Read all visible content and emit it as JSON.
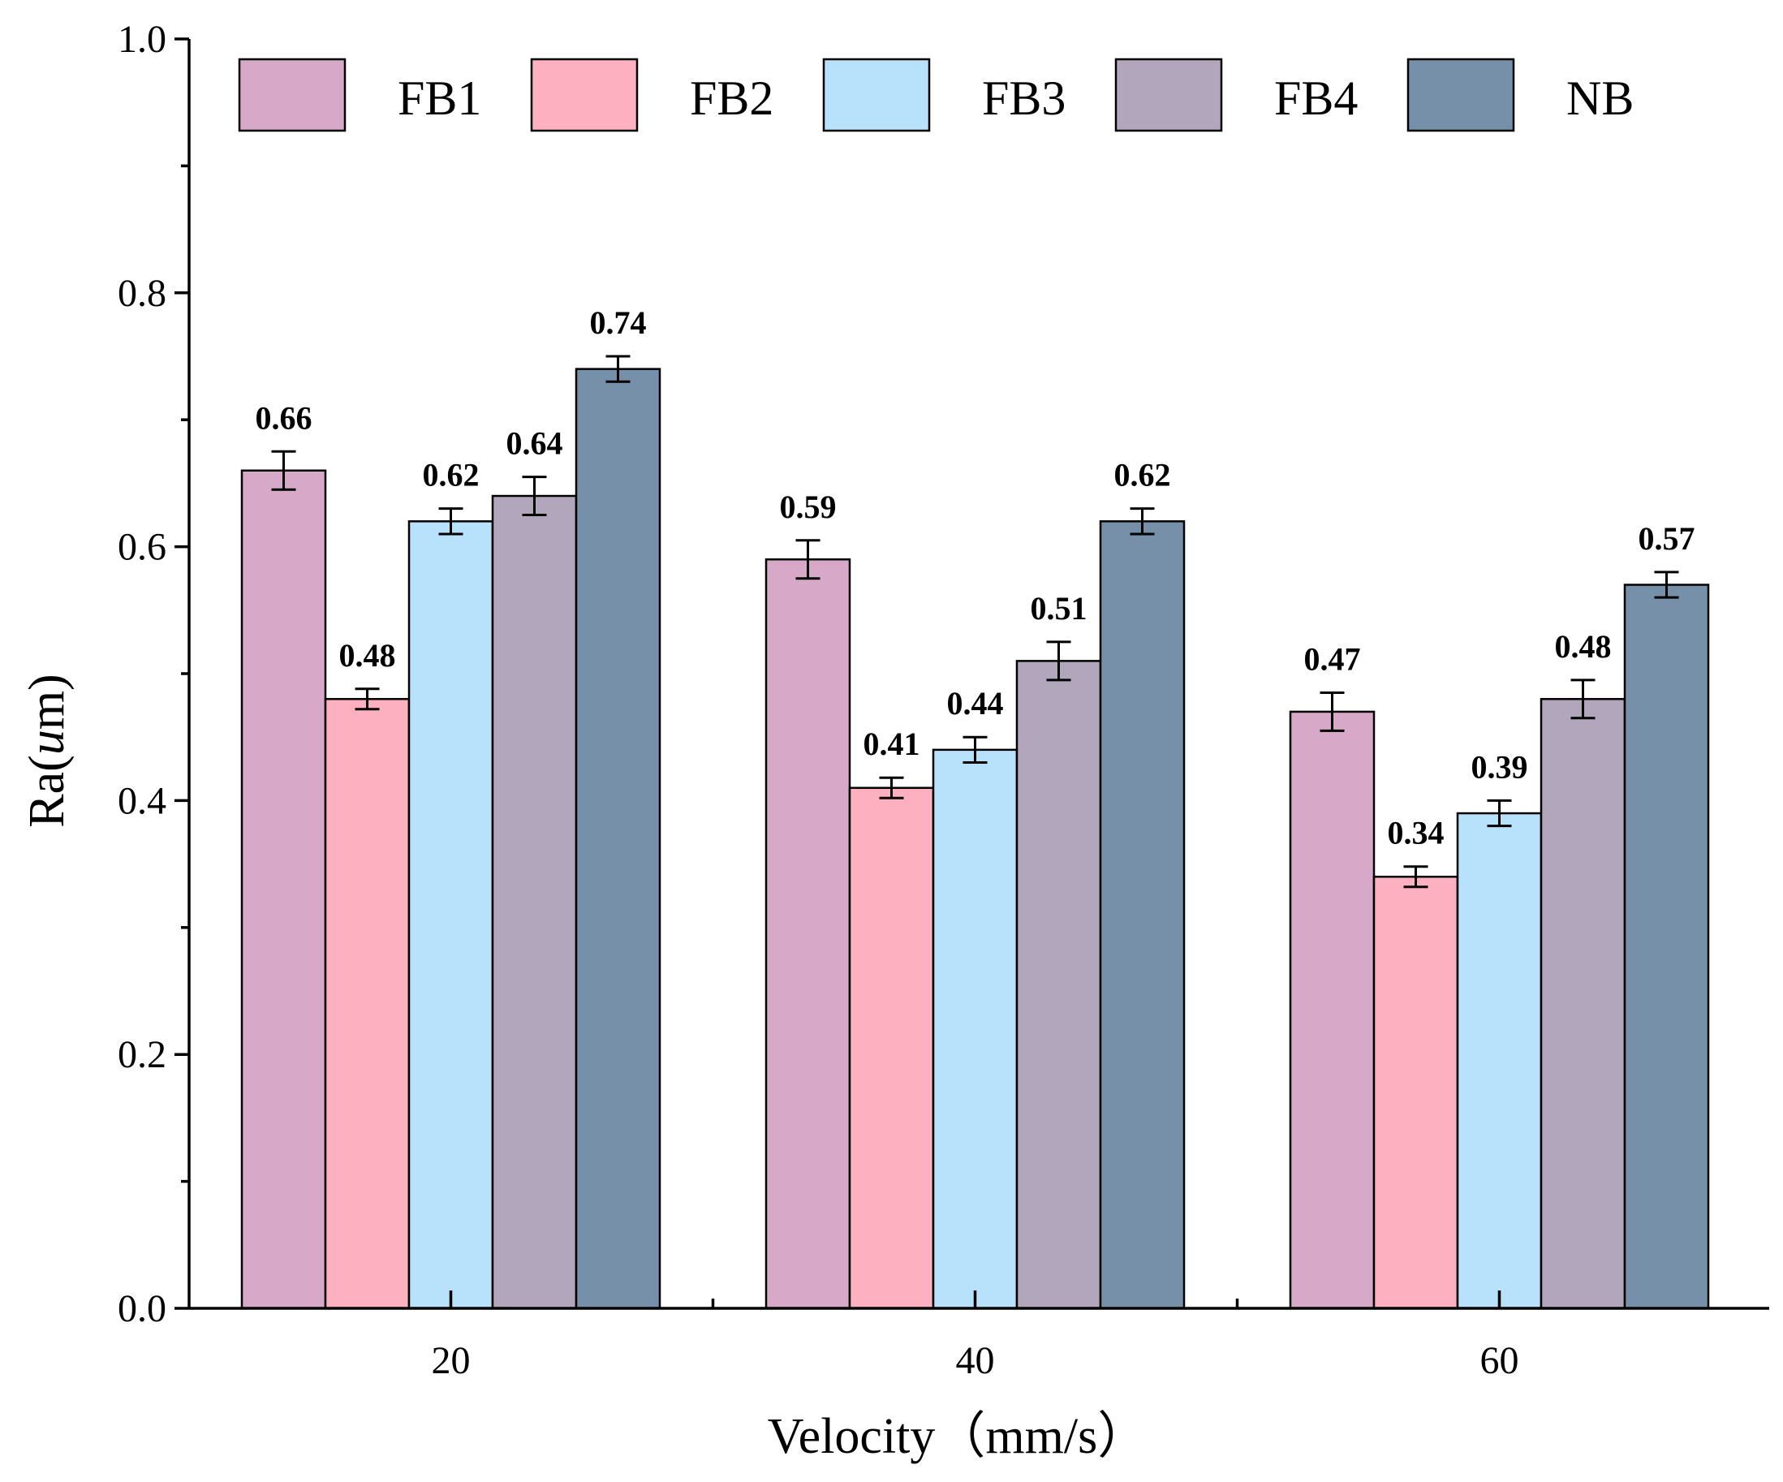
{
  "chart_data": {
    "type": "bar",
    "categories": [
      "20",
      "40",
      "60"
    ],
    "series": [
      {
        "name": "FB1",
        "color": "#d8a8c8",
        "values": [
          0.66,
          0.59,
          0.47
        ],
        "errors": [
          0.015,
          0.015,
          0.015
        ]
      },
      {
        "name": "FB2",
        "color": "#fdb0c0",
        "values": [
          0.48,
          0.41,
          0.34
        ],
        "errors": [
          0.008,
          0.008,
          0.008
        ]
      },
      {
        "name": "FB3",
        "color": "#b8e2fb",
        "values": [
          0.62,
          0.44,
          0.39
        ],
        "errors": [
          0.01,
          0.01,
          0.01
        ]
      },
      {
        "name": "FB4",
        "color": "#b2a6bc",
        "values": [
          0.64,
          0.51,
          0.48
        ],
        "errors": [
          0.015,
          0.015,
          0.015
        ]
      },
      {
        "name": "NB",
        "color": "#7590a8",
        "values": [
          0.74,
          0.62,
          0.57
        ],
        "errors": [
          0.01,
          0.01,
          0.01
        ]
      }
    ],
    "data_labels": [
      [
        "0.66",
        "0.59",
        "0.47"
      ],
      [
        "0.48",
        "0.41",
        "0.34"
      ],
      [
        "0.62",
        "0.44",
        "0.39"
      ],
      [
        "0.64",
        "0.51",
        "0.48"
      ],
      [
        "0.74",
        "0.62",
        "0.57"
      ]
    ],
    "xlabel": "Velocity（mm/s）",
    "ylabel_prefix": "Ra(",
    "ylabel_unit": "u",
    "ylabel_suffix": "m)",
    "ylim": [
      0.0,
      1.0
    ],
    "yticks": [
      "0.0",
      "0.2",
      "0.4",
      "0.6",
      "0.8",
      "1.0"
    ],
    "legend_position": "top",
    "grid": false
  }
}
